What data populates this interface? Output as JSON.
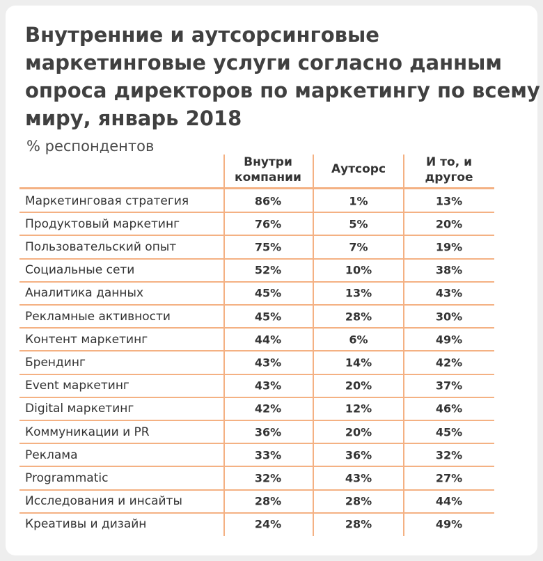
{
  "title": [
    "Внутренние и аутсорсинговые",
    "маркетинговые услуги согласно данным",
    "опроса директоров по маркетингу по всему",
    "миру, январь 2018"
  ],
  "subtitle": "% респондентов",
  "table": {
    "columns": [
      [
        "Внутри",
        "компании"
      ],
      [
        "Аутсорс"
      ],
      [
        "И то, и",
        "другое"
      ]
    ],
    "rows": [
      [
        "Маркетинговая стратегия",
        "86%",
        "1%",
        "13%"
      ],
      [
        "Продуктовый маркетинг",
        "76%",
        "5%",
        "20%"
      ],
      [
        "Пользовательский опыт",
        "75%",
        "7%",
        "19%"
      ],
      [
        "Социальные сети",
        "52%",
        "10%",
        "38%"
      ],
      [
        "Аналитика данных",
        "45%",
        "13%",
        "43%"
      ],
      [
        "Рекламные активности",
        "45%",
        "28%",
        "30%"
      ],
      [
        "Контент маркетинг",
        "44%",
        "6%",
        "49%"
      ],
      [
        "Брендинг",
        "43%",
        "14%",
        "42%"
      ],
      [
        "Event маркетинг",
        "43%",
        "20%",
        "37%"
      ],
      [
        "Digital маркетинг",
        "42%",
        "12%",
        "46%"
      ],
      [
        "Коммуникации и PR",
        "36%",
        "20%",
        "45%"
      ],
      [
        "Реклама",
        "33%",
        "36%",
        "32%"
      ],
      [
        "Programmatic",
        "32%",
        "43%",
        "27%"
      ],
      [
        "Исследования и инсайты",
        "28%",
        "28%",
        "44%"
      ],
      [
        "Креативы и дизайн",
        "24%",
        "28%",
        "49%"
      ]
    ]
  }
}
